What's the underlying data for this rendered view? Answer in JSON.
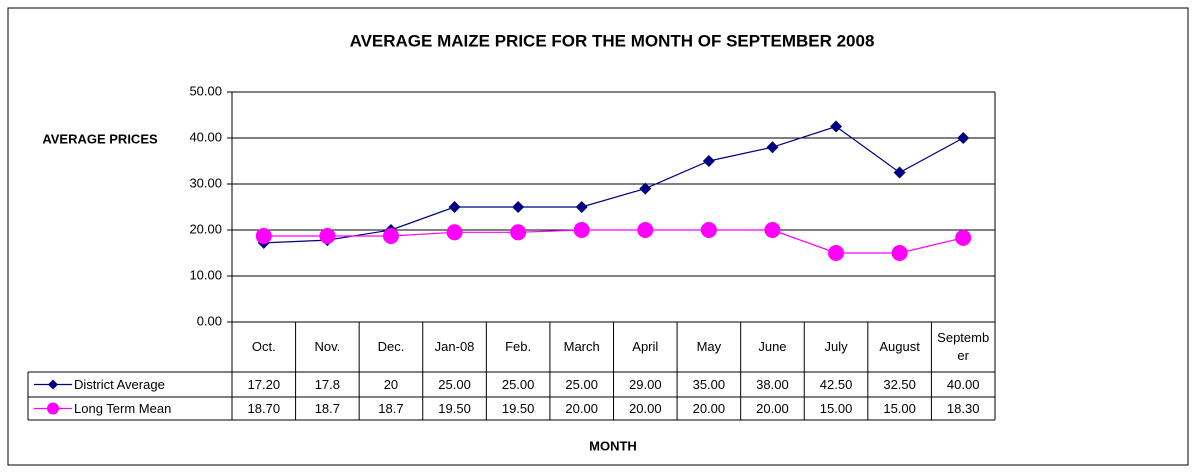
{
  "chart_data": {
    "type": "line",
    "title": "AVERAGE MAIZE PRICE FOR THE MONTH OF SEPTEMBER 2008",
    "y_label": "AVERAGE PRICES",
    "x_label": "MONTH",
    "categories": [
      "Oct.",
      "Nov.",
      "Dec.",
      "Jan-08",
      "Feb.",
      "March",
      "April",
      "May",
      "June",
      "July",
      "August",
      "September"
    ],
    "series": [
      {
        "name": "District Average",
        "color": "#000080",
        "marker": "diamond",
        "values": [
          17.2,
          17.8,
          20,
          25,
          25,
          25,
          29,
          35,
          38,
          42.5,
          32.5,
          40
        ],
        "value_labels": [
          "17.20",
          "17.8",
          "20",
          "25.00",
          "25.00",
          "25.00",
          "29.00",
          "35.00",
          "38.00",
          "42.50",
          "32.50",
          "40.00"
        ]
      },
      {
        "name": "Long Term Mean",
        "color": "#ff00ff",
        "marker": "circle",
        "values": [
          18.7,
          18.7,
          18.7,
          19.5,
          19.5,
          20,
          20,
          20,
          20,
          15,
          15,
          18.3
        ],
        "value_labels": [
          "18.70",
          "18.7",
          "18.7",
          "19.50",
          "19.50",
          "20.00",
          "20.00",
          "20.00",
          "20.00",
          "15.00",
          "15.00",
          "18.30"
        ]
      }
    ],
    "ylim": [
      0,
      50
    ],
    "yticks": [
      {
        "value": 0,
        "label": "0.00"
      },
      {
        "value": 10,
        "label": "10.00"
      },
      {
        "value": 20,
        "label": "20.00"
      },
      {
        "value": 30,
        "label": "30.00"
      },
      {
        "value": 40,
        "label": "40.00"
      },
      {
        "value": 50,
        "label": "50.00"
      }
    ],
    "grid": true,
    "data_table": true
  }
}
